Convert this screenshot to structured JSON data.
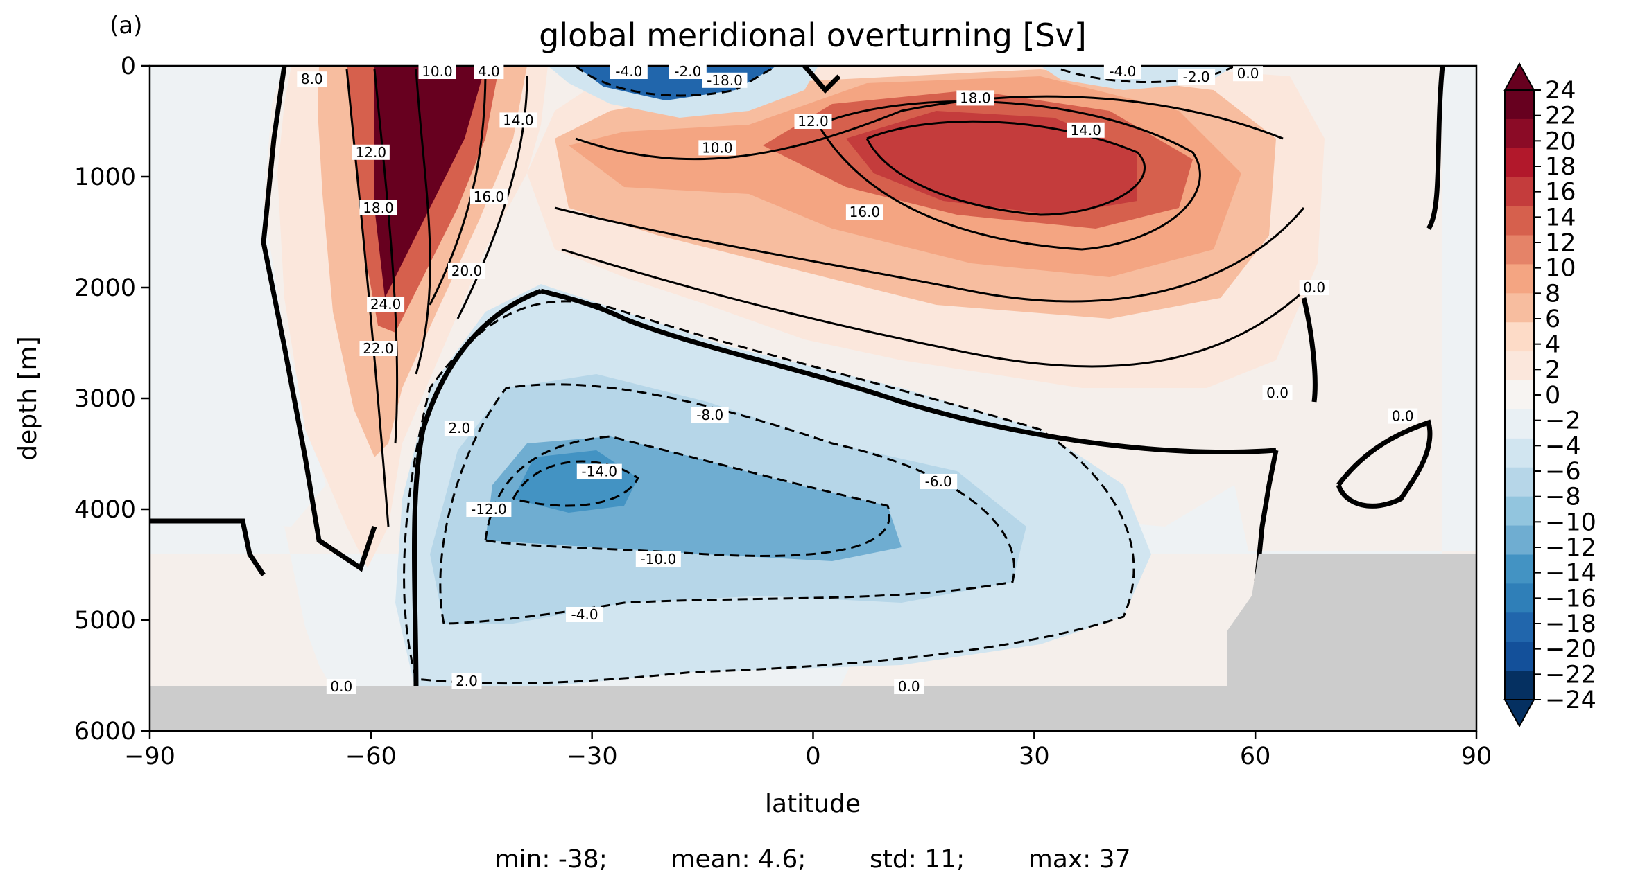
{
  "panel_label": "(a)",
  "stats_line": "min: -38;        mean: 4.6;        std: 11;        max: 37",
  "chart_data": {
    "type": "heatmap",
    "subtype": "filled contour",
    "title": "global meridional overturning [Sv]",
    "xlabel": "latitude",
    "ylabel": "depth [m]",
    "xlim": [
      -90,
      90
    ],
    "ylim": [
      6000,
      0
    ],
    "y_inverted": true,
    "xticks": [
      -90,
      -60,
      -30,
      0,
      30,
      60,
      90
    ],
    "xtick_labels": [
      "−90",
      "−60",
      "−30",
      "0",
      "30",
      "60",
      "90"
    ],
    "yticks": [
      0,
      1000,
      2000,
      3000,
      4000,
      5000,
      6000
    ],
    "ytick_labels": [
      "0",
      "1000",
      "2000",
      "3000",
      "4000",
      "5000",
      "6000"
    ],
    "colormap": "RdBu_r",
    "levels": [
      -24,
      -22,
      -20,
      -18,
      -16,
      -14,
      -12,
      -10,
      -8,
      -6,
      -4,
      -2,
      0,
      2,
      4,
      6,
      8,
      10,
      12,
      14,
      16,
      18,
      20,
      22,
      24
    ],
    "colorbar_ticks": [
      24,
      22,
      20,
      18,
      16,
      14,
      12,
      10,
      8,
      6,
      4,
      2,
      0,
      -2,
      -4,
      -6,
      -8,
      -10,
      -12,
      -14,
      -16,
      -18,
      -20,
      -22,
      -24
    ],
    "colorbar_tick_labels": [
      "24",
      "22",
      "20",
      "18",
      "16",
      "14",
      "12",
      "10",
      "8",
      "6",
      "4",
      "2",
      "0",
      "−2",
      "−4",
      "−6",
      "−8",
      "−10",
      "−12",
      "−14",
      "−16",
      "−18",
      "−20",
      "−22",
      "−24"
    ],
    "colorbar_extend": "both",
    "colorbar_colors": [
      "#67001f",
      "#8b0b26",
      "#b2182b",
      "#c43c3c",
      "#d6604d",
      "#e58368",
      "#f4a582",
      "#f7bd9f",
      "#fddbc7",
      "#fbe7dc",
      "#f7f4f2",
      "#e9f0f4",
      "#d1e5f0",
      "#b6d6e8",
      "#92c5de",
      "#6fadd1",
      "#4393c3",
      "#2f7fb8",
      "#2166ac",
      "#13509a",
      "#053061"
    ],
    "land_color": "#cccccc",
    "contour_labels": [
      {
        "text": "8.0",
        "lat": -68,
        "depth": 120
      },
      {
        "text": "12.0",
        "lat": -60,
        "depth": 780
      },
      {
        "text": "18.0",
        "lat": -59,
        "depth": 1280
      },
      {
        "text": "24.0",
        "lat": -58,
        "depth": 2150
      },
      {
        "text": "22.0",
        "lat": -59,
        "depth": 2550
      },
      {
        "text": "10.0",
        "lat": -51,
        "depth": 0
      },
      {
        "text": "4.0",
        "lat": -44,
        "depth": 0
      },
      {
        "text": "14.0",
        "lat": -40,
        "depth": 490
      },
      {
        "text": "16.0",
        "lat": -44,
        "depth": 1180
      },
      {
        "text": "20.0",
        "lat": -47,
        "depth": 1850
      },
      {
        "text": "10.0",
        "lat": -13,
        "depth": 740
      },
      {
        "text": "-4.0",
        "lat": -25,
        "depth": 20
      },
      {
        "text": "-2.0",
        "lat": -17,
        "depth": 20
      },
      {
        "text": "-18.0",
        "lat": -12,
        "depth": 130
      },
      {
        "text": "12.0",
        "lat": 0,
        "depth": 500
      },
      {
        "text": "18.0",
        "lat": 22,
        "depth": 290
      },
      {
        "text": "14.0",
        "lat": 37,
        "depth": 580
      },
      {
        "text": "16.0",
        "lat": 7,
        "depth": 1320
      },
      {
        "text": "-4.0",
        "lat": 42,
        "depth": 30
      },
      {
        "text": "-2.0",
        "lat": 52,
        "depth": 100
      },
      {
        "text": "0.0",
        "lat": 59,
        "depth": 70
      },
      {
        "text": "0.0",
        "lat": 68,
        "depth": 2000
      },
      {
        "text": "0.0",
        "lat": 63,
        "depth": 2950
      },
      {
        "text": "0.0",
        "lat": 80,
        "depth": 3160
      },
      {
        "text": "-8.0",
        "lat": -14,
        "depth": 3150
      },
      {
        "text": "-14.0",
        "lat": -29,
        "depth": 3660
      },
      {
        "text": "-6.0",
        "lat": 17,
        "depth": 3750
      },
      {
        "text": "2.0",
        "lat": -48,
        "depth": 3270
      },
      {
        "text": "-12.0",
        "lat": -44,
        "depth": 4000
      },
      {
        "text": "-10.0",
        "lat": -21,
        "depth": 4450
      },
      {
        "text": "-4.0",
        "lat": -31,
        "depth": 4950
      },
      {
        "text": "2.0",
        "lat": -47,
        "depth": 5550
      },
      {
        "text": "0.0",
        "lat": -64,
        "depth": 5600
      },
      {
        "text": "0.0",
        "lat": 13,
        "depth": 5600
      }
    ]
  }
}
